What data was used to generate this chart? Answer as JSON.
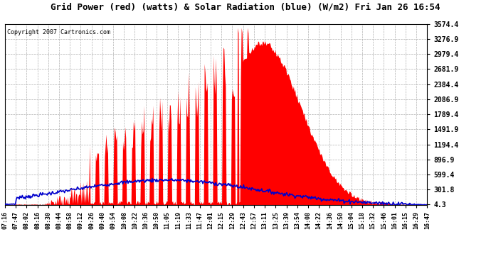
{
  "title": "Grid Power (red) (watts) & Solar Radiation (blue) (W/m2) Fri Jan 26 16:54",
  "copyright": "Copyright 2007 Cartronics.com",
  "background_color": "#ffffff",
  "plot_bg_color": "#ffffff",
  "red_color": "#ff0000",
  "blue_color": "#0000cc",
  "grid_color": "#b0b0b0",
  "yticks": [
    4.3,
    301.8,
    599.4,
    896.9,
    1194.4,
    1491.9,
    1789.4,
    2086.9,
    2384.4,
    2681.9,
    2979.4,
    3276.9,
    3574.4
  ],
  "ylim": [
    0,
    3574.4
  ],
  "xtick_labels": [
    "07:16",
    "07:47",
    "08:02",
    "08:16",
    "08:30",
    "08:44",
    "08:58",
    "09:12",
    "09:26",
    "09:40",
    "09:54",
    "10:08",
    "10:22",
    "10:36",
    "10:50",
    "11:05",
    "11:19",
    "11:33",
    "11:47",
    "12:01",
    "12:15",
    "12:29",
    "12:43",
    "12:57",
    "13:11",
    "13:25",
    "13:39",
    "13:54",
    "14:08",
    "14:22",
    "14:36",
    "14:50",
    "15:04",
    "15:18",
    "15:32",
    "15:46",
    "16:01",
    "16:15",
    "16:29",
    "16:47"
  ],
  "n_points": 560
}
